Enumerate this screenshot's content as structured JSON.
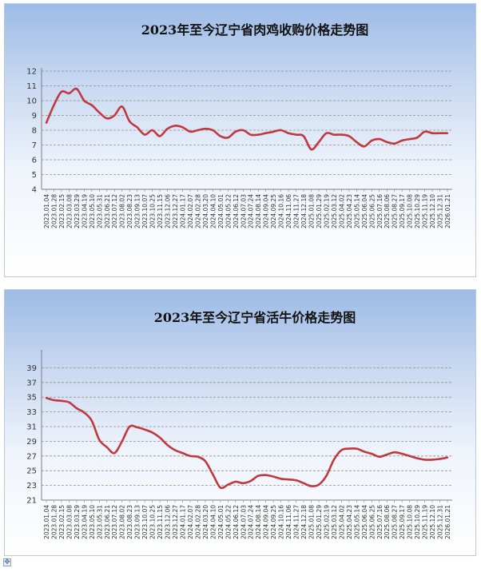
{
  "chart_data": [
    {
      "type": "line",
      "title": "2023年至今辽宁省肉鸡收购价格走势图",
      "xlabel": "",
      "ylabel": "",
      "ylim": [
        4,
        12
      ],
      "yticks": [
        4,
        5,
        6,
        7,
        8,
        9,
        10,
        11,
        12
      ],
      "grid": true,
      "legend": "none",
      "color": "#c0393f",
      "x": [
        "2023.01.04",
        "2023.01.28",
        "2023.02.15",
        "2023.03.08",
        "2023.03.29",
        "2023.04.19",
        "2023.05.10",
        "2023.05.31",
        "2023.06.21",
        "2023.07.12",
        "2023.08.02",
        "2023.08.23",
        "2023.09.13",
        "2023.10.07",
        "2023.10.25",
        "2023.11.15",
        "2023.12.06",
        "2023.12.27",
        "2024.01.17",
        "2024.02.07",
        "2024.02.28",
        "2024.03.20",
        "2024.04.10",
        "2024.05.01",
        "2024.05.22",
        "2024.06.12",
        "2024.07.03",
        "2024.07.24",
        "2024.08.14",
        "2024.09.04",
        "2024.09.25",
        "2024.10.16",
        "2024.11.06",
        "2024.11.27",
        "2024.12.18",
        "2025.01.08",
        "2025.01.29",
        "2025.02.19",
        "2025.03.12",
        "2025.04.02",
        "2025.04.23",
        "2025.05.14",
        "2025.06.04",
        "2025.06.25",
        "2025.07.16",
        "2025.08.06",
        "2025.08.27",
        "2025.09.17",
        "2025.10.08",
        "2025.10.29",
        "2025.11.19",
        "2025.12.10",
        "2025.12.31",
        "2026.01.21"
      ],
      "values": [
        8.5,
        9.7,
        10.6,
        10.5,
        10.8,
        10.0,
        9.7,
        9.2,
        8.8,
        9.0,
        9.6,
        8.6,
        8.2,
        7.7,
        8.0,
        7.6,
        8.1,
        8.3,
        8.2,
        7.9,
        8.0,
        8.1,
        8.0,
        7.6,
        7.5,
        7.9,
        8.0,
        7.7,
        7.7,
        7.8,
        7.9,
        8.0,
        7.8,
        7.7,
        7.6,
        6.7,
        7.2,
        7.8,
        7.7,
        7.7,
        7.6,
        7.2,
        6.9,
        7.3,
        7.4,
        7.2,
        7.1,
        7.3,
        7.4,
        7.5,
        7.9,
        7.8,
        7.8,
        7.8
      ]
    },
    {
      "type": "line",
      "title": "2023年至今辽宁省活牛价格走势图",
      "xlabel": "",
      "ylabel": "",
      "ylim": [
        21,
        41
      ],
      "yticks": [
        21,
        23,
        25,
        27,
        29,
        31,
        33,
        35,
        37,
        39
      ],
      "grid": true,
      "legend": "none",
      "color": "#c0393f",
      "x": [
        "2023.01.04",
        "2023.01.28",
        "2023.02.15",
        "2023.03.08",
        "2023.03.29",
        "2023.04.19",
        "2023.05.10",
        "2023.05.31",
        "2023.06.21",
        "2023.07.12",
        "2023.08.02",
        "2023.08.23",
        "2023.09.13",
        "2023.10.07",
        "2023.10.25",
        "2023.11.15",
        "2023.12.06",
        "2023.12.27",
        "2024.01.17",
        "2024.02.07",
        "2024.02.28",
        "2024.03.20",
        "2024.04.10",
        "2024.05.01",
        "2024.05.22",
        "2024.06.12",
        "2024.07.03",
        "2024.07.24",
        "2024.08.14",
        "2024.09.04",
        "2024.09.25",
        "2024.10.16",
        "2024.11.06",
        "2024.11.27",
        "2024.12.18",
        "2025.01.08",
        "2025.01.29",
        "2025.02.19",
        "2025.03.12",
        "2025.04.02",
        "2025.04.23",
        "2025.05.14",
        "2025.06.04",
        "2025.06.25",
        "2025.07.16",
        "2025.08.06",
        "2025.08.27",
        "2025.09.17",
        "2025.10.08",
        "2025.10.29",
        "2025.11.19",
        "2025.12.10",
        "2025.12.31",
        "2026.01.21"
      ],
      "values": [
        34.9,
        34.6,
        34.5,
        34.3,
        33.5,
        32.9,
        31.8,
        29.2,
        28.2,
        27.4,
        29.0,
        31.0,
        30.9,
        30.6,
        30.2,
        29.5,
        28.5,
        27.8,
        27.4,
        27.0,
        26.9,
        26.3,
        24.5,
        22.7,
        23.1,
        23.5,
        23.3,
        23.6,
        24.3,
        24.4,
        24.2,
        23.9,
        23.8,
        23.7,
        23.3,
        22.9,
        23.1,
        24.3,
        26.5,
        27.8,
        28.0,
        28.0,
        27.6,
        27.3,
        26.9,
        27.2,
        27.5,
        27.3,
        27.0,
        26.7,
        26.5,
        26.5,
        26.6,
        26.8
      ]
    }
  ]
}
